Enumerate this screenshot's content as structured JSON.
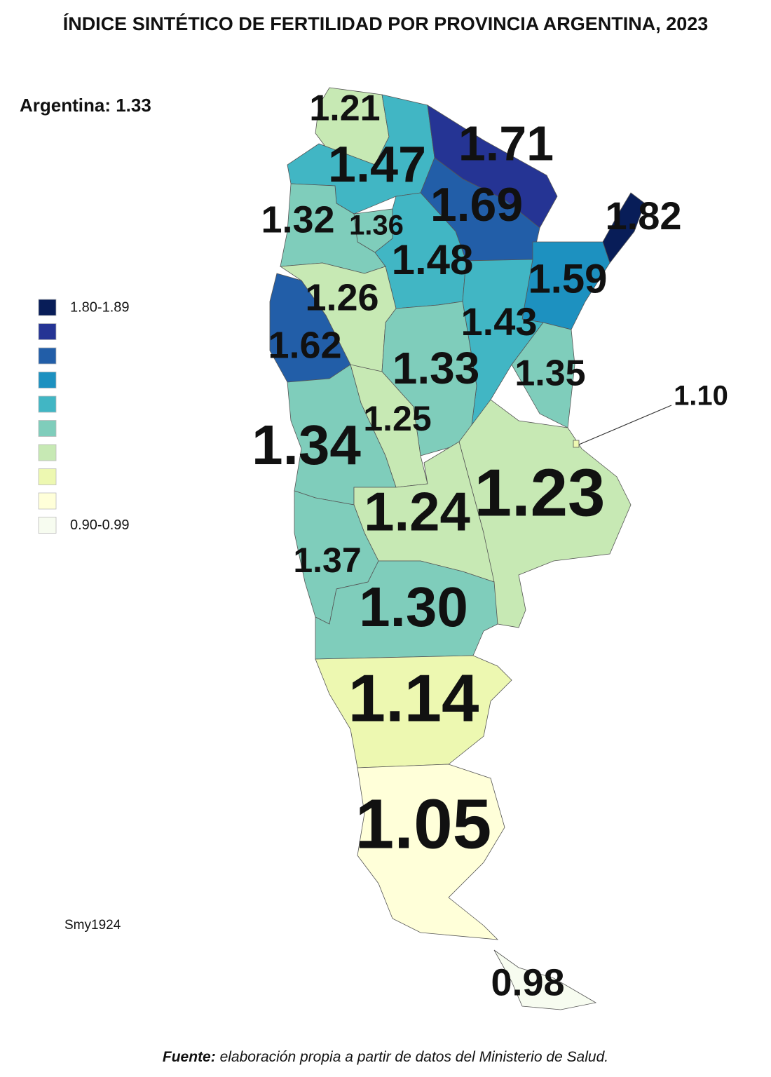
{
  "title": "ÍNDICE SINTÉTICO DE FERTILIDAD POR PROVINCIA ARGENTINA, 2023",
  "national": "Argentina: 1.33",
  "legend": {
    "items": [
      {
        "color": "#081d58",
        "label": "1.80-1.89"
      },
      {
        "color": "#253494",
        "label": null
      },
      {
        "color": "#225ea8",
        "label": null
      },
      {
        "color": "#1d91c0",
        "label": null
      },
      {
        "color": "#41b6c4",
        "label": null
      },
      {
        "color": "#7fcdbb",
        "label": null
      },
      {
        "color": "#c7e9b4",
        "label": null
      },
      {
        "color": "#edf8b1",
        "label": null
      },
      {
        "color": "#ffffd9",
        "label": null
      },
      {
        "color": "#f7fcf0",
        "label": "0.90-0.99"
      }
    ]
  },
  "regions": [
    {
      "label": "1.21",
      "color": "#c7e9b4"
    },
    {
      "label": "1.47",
      "color": "#41b6c4"
    },
    {
      "label": "1.71",
      "color": "#253494"
    },
    {
      "label": "1.69",
      "color": "#225ea8"
    },
    {
      "label": "1.82",
      "color": "#081d58"
    },
    {
      "label": "1.59",
      "color": "#1d91c0"
    },
    {
      "label": "1.36",
      "color": "#7fcdbb"
    },
    {
      "label": "1.32",
      "color": "#7fcdbb"
    },
    {
      "label": "1.48",
      "color": "#41b6c4"
    },
    {
      "label": "1.26",
      "color": "#c7e9b4"
    },
    {
      "label": "1.62",
      "color": "#225ea8"
    },
    {
      "label": "1.43",
      "color": "#41b6c4"
    },
    {
      "label": "1.33",
      "color": "#7fcdbb"
    },
    {
      "label": "1.35",
      "color": "#7fcdbb"
    },
    {
      "label": "1.25",
      "color": "#c7e9b4"
    },
    {
      "label": "1.34",
      "color": "#7fcdbb"
    },
    {
      "label": "1.23",
      "color": "#c7e9b4"
    },
    {
      "label": "1.10",
      "color": "#edf8b1"
    },
    {
      "label": "1.24",
      "color": "#c7e9b4"
    },
    {
      "label": "1.37",
      "color": "#7fcdbb"
    },
    {
      "label": "1.30",
      "color": "#7fcdbb"
    },
    {
      "label": "1.14",
      "color": "#edf8b1"
    },
    {
      "label": "1.05",
      "color": "#ffffd9"
    },
    {
      "label": "0.98",
      "color": "#f7fcf0"
    }
  ],
  "credit": "Smy1924",
  "source": {
    "lead": "Fuente:",
    "text": "elaboración propia a partir de datos del Ministerio de Salud."
  }
}
